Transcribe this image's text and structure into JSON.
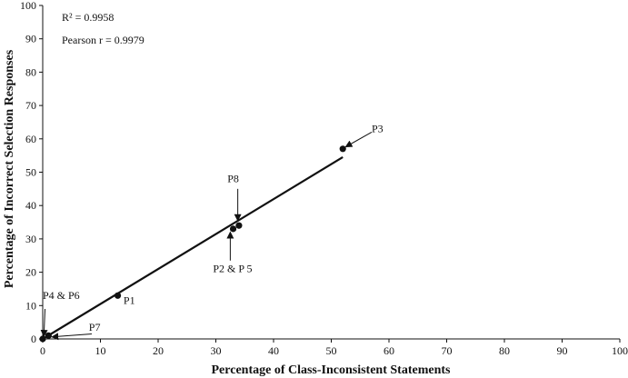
{
  "chart_data": {
    "type": "scatter",
    "xlabel": "Percentage of Class-Inconsistent Statements",
    "ylabel": "Percentage of Incorrect Selection Responses",
    "xlim": [
      0,
      100
    ],
    "ylim": [
      0,
      100
    ],
    "x_ticks": [
      "0",
      "10",
      "20",
      "30",
      "40",
      "50",
      "60",
      "70",
      "80",
      "90",
      "100"
    ],
    "y_ticks": [
      "0",
      "10",
      "20",
      "30",
      "40",
      "50",
      "60",
      "70",
      "80",
      "90",
      "100"
    ],
    "grid": false,
    "stats": {
      "r_squared": "R² = 0.9958",
      "pearson": "Pearson r = 0.9979"
    },
    "points": [
      {
        "x": 0,
        "y": 0
      },
      {
        "x": 1,
        "y": 1
      },
      {
        "x": 13,
        "y": 13
      },
      {
        "x": 33,
        "y": 33
      },
      {
        "x": 34,
        "y": 34
      },
      {
        "x": 52,
        "y": 57
      }
    ],
    "trendline": {
      "x": [
        0,
        52
      ],
      "y": [
        0,
        54.5
      ]
    },
    "annotations": [
      {
        "text": "P3",
        "point": [
          52,
          57
        ],
        "label": [
          57,
          62
        ],
        "arrow_from": [
          57,
          62
        ],
        "arrow_to": [
          52.5,
          57.6
        ]
      },
      {
        "text": "P8",
        "point": [
          34,
          34
        ],
        "label": [
          32,
          47
        ],
        "arrow_from": [
          33.8,
          45
        ],
        "arrow_to": [
          33.8,
          35.5
        ]
      },
      {
        "text": "P2 & P 5",
        "point": [
          33,
          33
        ],
        "label": [
          29.5,
          20
        ],
        "arrow_from": [
          32.5,
          23.5
        ],
        "arrow_to": [
          32.5,
          32
        ]
      },
      {
        "text": "P1",
        "point": [
          13,
          13
        ],
        "label": [
          14,
          10.5
        ],
        "arrow_from": null,
        "arrow_to": null
      },
      {
        "text": "P4 & P6",
        "point": [
          0,
          0
        ],
        "label": [
          0,
          12
        ],
        "arrow_from": [
          0.4,
          9
        ],
        "arrow_to": [
          0.2,
          0.8
        ]
      },
      {
        "text": "P7",
        "point": [
          1,
          1
        ],
        "label": [
          8,
          2.5
        ],
        "arrow_from": [
          8.5,
          1.5
        ],
        "arrow_to": [
          1.6,
          0.6
        ]
      }
    ]
  }
}
